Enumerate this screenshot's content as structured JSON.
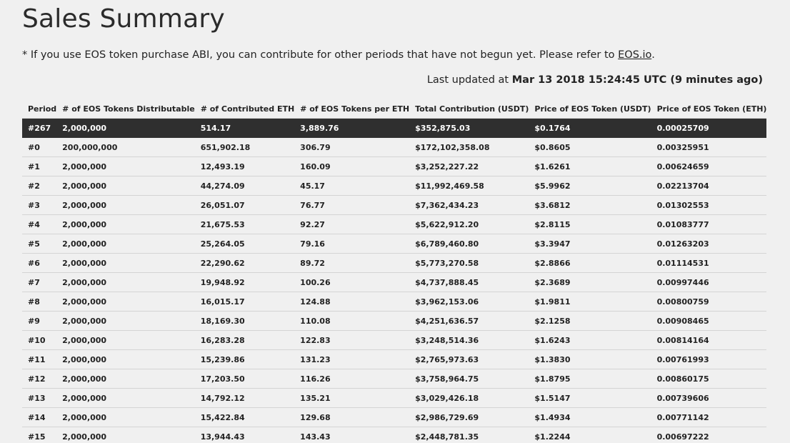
{
  "page_title": "Sales Summary",
  "note": {
    "text": "* If you use EOS token purchase ABI, you can contribute for other periods that have not begun yet. Please refer to ",
    "link_text": "EOS.io",
    "suffix": "."
  },
  "updated": {
    "prefix": "Last updated at ",
    "timestamp": "Mar 13 2018 15:24:45 UTC (9 minutes ago)"
  },
  "table": {
    "headers": [
      "Period",
      "# of EOS Tokens Distributable",
      "# of Contributed ETH",
      "# of EOS Tokens per ETH",
      "Total Contribution (USDT)",
      "Price of EOS Token (USDT)",
      "Price of EOS Token (ETH)"
    ],
    "current_row": [
      "#267",
      "2,000,000",
      "514.17",
      "3,889.76",
      "$352,875.03",
      "$0.1764",
      "0.00025709"
    ],
    "rows": [
      [
        "#0",
        "200,000,000",
        "651,902.18",
        "306.79",
        "$172,102,358.08",
        "$0.8605",
        "0.00325951"
      ],
      [
        "#1",
        "2,000,000",
        "12,493.19",
        "160.09",
        "$3,252,227.22",
        "$1.6261",
        "0.00624659"
      ],
      [
        "#2",
        "2,000,000",
        "44,274.09",
        "45.17",
        "$11,992,469.58",
        "$5.9962",
        "0.02213704"
      ],
      [
        "#3",
        "2,000,000",
        "26,051.07",
        "76.77",
        "$7,362,434.23",
        "$3.6812",
        "0.01302553"
      ],
      [
        "#4",
        "2,000,000",
        "21,675.53",
        "92.27",
        "$5,622,912.20",
        "$2.8115",
        "0.01083777"
      ],
      [
        "#5",
        "2,000,000",
        "25,264.05",
        "79.16",
        "$6,789,460.80",
        "$3.3947",
        "0.01263203"
      ],
      [
        "#6",
        "2,000,000",
        "22,290.62",
        "89.72",
        "$5,773,270.58",
        "$2.8866",
        "0.01114531"
      ],
      [
        "#7",
        "2,000,000",
        "19,948.92",
        "100.26",
        "$4,737,888.45",
        "$2.3689",
        "0.00997446"
      ],
      [
        "#8",
        "2,000,000",
        "16,015.17",
        "124.88",
        "$3,962,153.06",
        "$1.9811",
        "0.00800759"
      ],
      [
        "#9",
        "2,000,000",
        "18,169.30",
        "110.08",
        "$4,251,636.57",
        "$2.1258",
        "0.00908465"
      ],
      [
        "#10",
        "2,000,000",
        "16,283.28",
        "122.83",
        "$3,248,514.36",
        "$1.6243",
        "0.00814164"
      ],
      [
        "#11",
        "2,000,000",
        "15,239.86",
        "131.23",
        "$2,765,973.63",
        "$1.3830",
        "0.00761993"
      ],
      [
        "#12",
        "2,000,000",
        "17,203.50",
        "116.26",
        "$3,758,964.75",
        "$1.8795",
        "0.00860175"
      ],
      [
        "#13",
        "2,000,000",
        "14,792.12",
        "135.21",
        "$3,029,426.18",
        "$1.5147",
        "0.00739606"
      ],
      [
        "#14",
        "2,000,000",
        "15,422.84",
        "129.68",
        "$2,986,729.69",
        "$1.4934",
        "0.00771142"
      ],
      [
        "#15",
        "2,000,000",
        "13,944.43",
        "143.43",
        "$2,448,781.35",
        "$1.2244",
        "0.00697222"
      ]
    ]
  }
}
